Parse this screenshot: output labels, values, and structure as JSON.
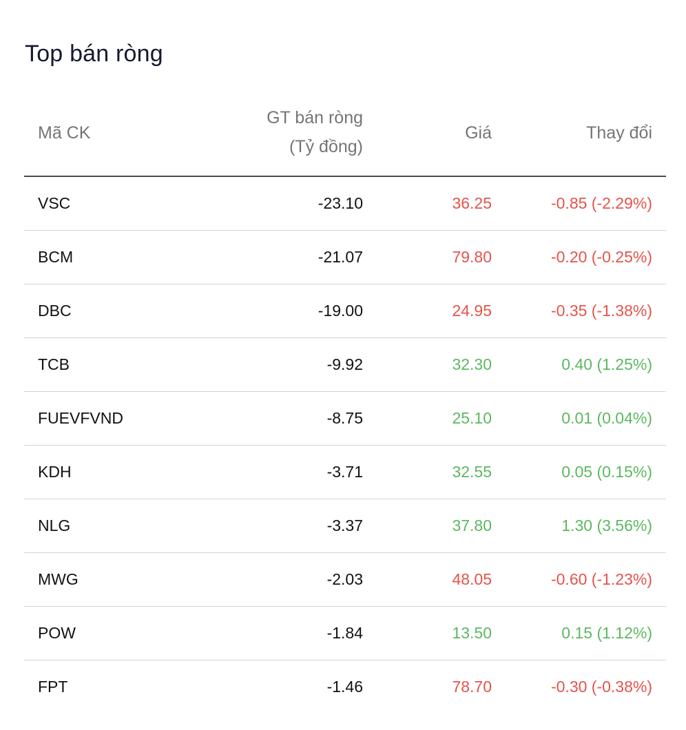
{
  "title": "Top bán ròng",
  "columns": {
    "code": "Mã CK",
    "value_line1": "GT bán ròng",
    "value_line2": "(Tỷ đồng)",
    "price": "Giá",
    "change": "Thay đổi"
  },
  "colors": {
    "down": "#e5534b",
    "up": "#5cb860"
  },
  "rows": [
    {
      "code": "VSC",
      "value": "-23.10",
      "price": "36.25",
      "change": "-0.85 (-2.29%)",
      "trend": "down"
    },
    {
      "code": "BCM",
      "value": "-21.07",
      "price": "79.80",
      "change": "-0.20 (-0.25%)",
      "trend": "down"
    },
    {
      "code": "DBC",
      "value": "-19.00",
      "price": "24.95",
      "change": "-0.35 (-1.38%)",
      "trend": "down"
    },
    {
      "code": "TCB",
      "value": "-9.92",
      "price": "32.30",
      "change": "0.40 (1.25%)",
      "trend": "up"
    },
    {
      "code": "FUEVFVND",
      "value": "-8.75",
      "price": "25.10",
      "change": "0.01 (0.04%)",
      "trend": "up"
    },
    {
      "code": "KDH",
      "value": "-3.71",
      "price": "32.55",
      "change": "0.05 (0.15%)",
      "trend": "up"
    },
    {
      "code": "NLG",
      "value": "-3.37",
      "price": "37.80",
      "change": "1.30 (3.56%)",
      "trend": "up"
    },
    {
      "code": "MWG",
      "value": "-2.03",
      "price": "48.05",
      "change": "-0.60 (-1.23%)",
      "trend": "down"
    },
    {
      "code": "POW",
      "value": "-1.84",
      "price": "13.50",
      "change": "0.15 (1.12%)",
      "trend": "up"
    },
    {
      "code": "FPT",
      "value": "-1.46",
      "price": "78.70",
      "change": "-0.30 (-0.38%)",
      "trend": "down"
    }
  ]
}
